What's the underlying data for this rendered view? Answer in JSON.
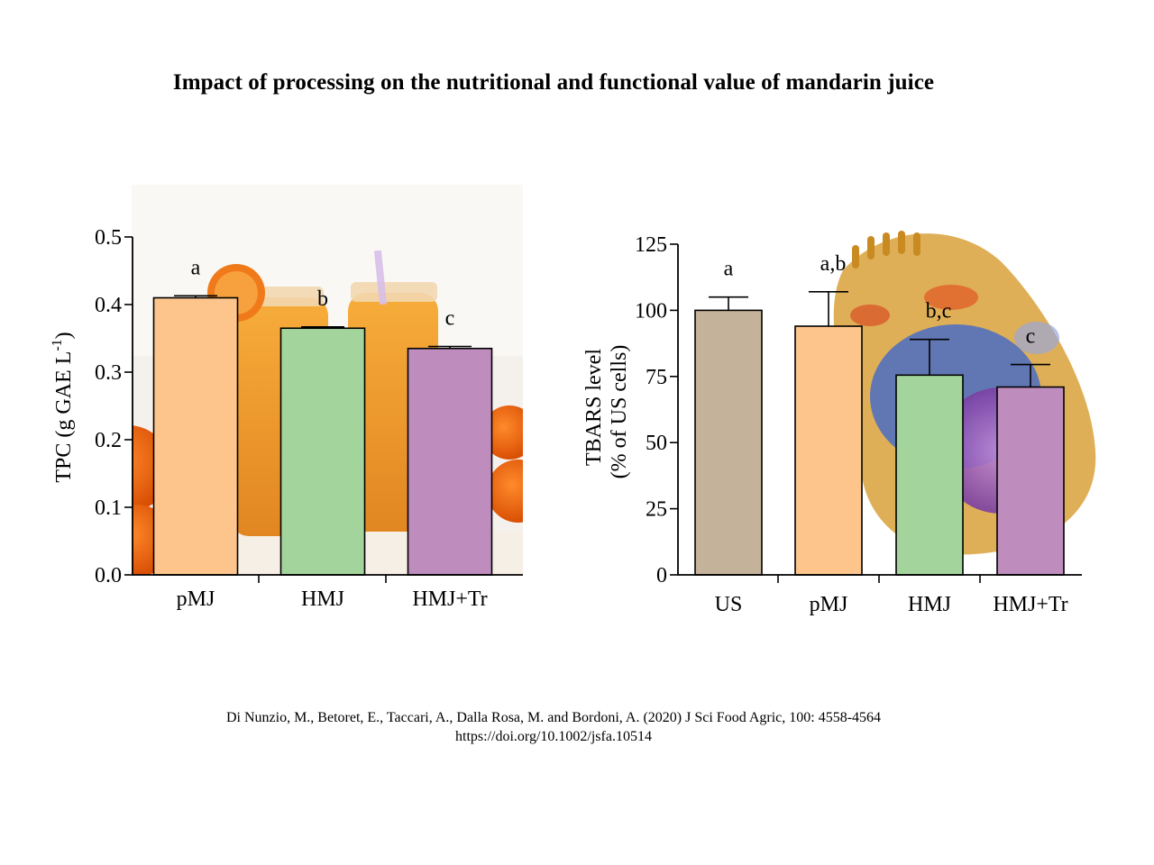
{
  "title": "Impact of processing on the nutritional and functional value of mandarin juice",
  "citation": {
    "line1": "Di Nunzio, M., Betoret, E., Taccari, A., Dalla Rosa, M. and Bordoni, A. (2020) J Sci Food Agric, 100: 4558-4564",
    "line2": "https://doi.org/10.1002/jsfa.10514"
  },
  "colors": {
    "US": "#c5b29a",
    "pMJ": "#fdc58b",
    "HMJ": "#a3d49c",
    "HMJ+Tr": "#be8dbd"
  },
  "chart_data": [
    {
      "type": "bar",
      "ylabel_main": "TPC (g GAE L",
      "ylabel_sup": "-1",
      "ylabel_tail": ")",
      "categories": [
        "pMJ",
        "HMJ",
        "HMJ+Tr"
      ],
      "values": [
        0.41,
        0.365,
        0.335
      ],
      "errors": [
        0.003,
        0.002,
        0.003
      ],
      "letters": [
        "a",
        "b",
        "c"
      ],
      "ylim": [
        0,
        0.5
      ],
      "yticks": [
        "0.0",
        "0.1",
        "0.2",
        "0.3",
        "0.4",
        "0.5"
      ],
      "background_image": "mandarin-juice-jars-photo"
    },
    {
      "type": "bar",
      "ylabel_line1": "TBARS level",
      "ylabel_line2": "(% of US cells)",
      "categories": [
        "US",
        "pMJ",
        "HMJ",
        "HMJ+Tr"
      ],
      "values": [
        100,
        94,
        75.5,
        71
      ],
      "errors": [
        5,
        13,
        13.5,
        8.5
      ],
      "letters": [
        "a",
        "a,b",
        "b,c",
        "c"
      ],
      "ylim": [
        0,
        125
      ],
      "yticks": [
        "0",
        "25",
        "50",
        "75",
        "100",
        "125"
      ],
      "background_image": "animal-cell-illustration"
    }
  ]
}
